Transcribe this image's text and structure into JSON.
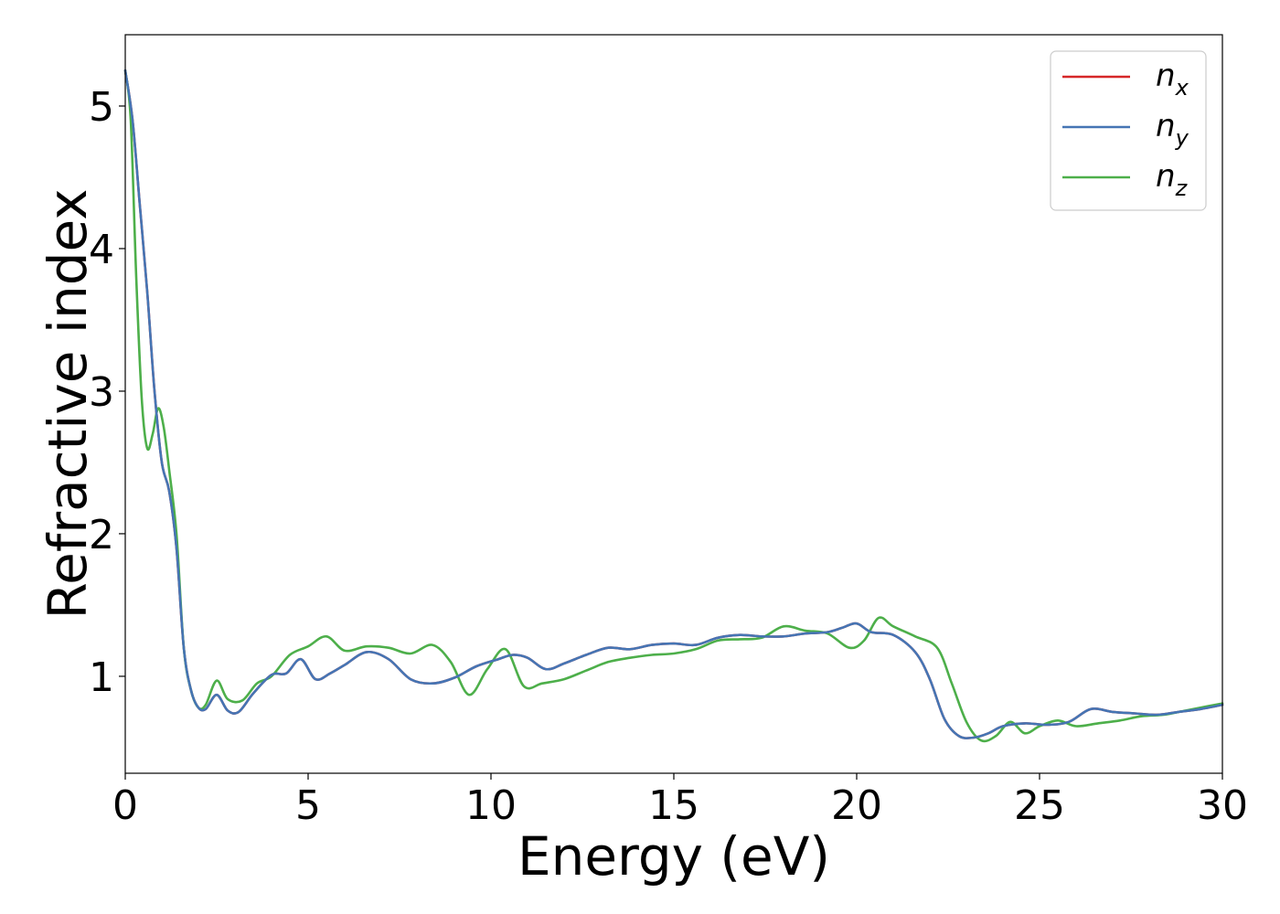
{
  "chart_data": {
    "type": "line",
    "title": "",
    "xlabel": "Energy (eV)",
    "ylabel": "Refractive index",
    "xlim": [
      0,
      30
    ],
    "ylim": [
      0.32,
      5.5
    ],
    "xticks": [
      0,
      5,
      10,
      15,
      20,
      25,
      30
    ],
    "yticks": [
      1,
      2,
      3,
      4,
      5
    ],
    "grid": false,
    "legend_position": "top-right",
    "series": [
      {
        "name": "n_x",
        "label_main": "n",
        "label_sub": "x",
        "color": "#d62728",
        "x": [
          0,
          0.2,
          0.4,
          0.6,
          0.8,
          1.0,
          1.2,
          1.4,
          1.6,
          1.8,
          2.0,
          2.2,
          2.5,
          2.8,
          3.1,
          3.5,
          4.0,
          4.4,
          4.8,
          5.2,
          5.6,
          6.0,
          6.6,
          7.2,
          7.8,
          8.4,
          9.0,
          9.6,
          10.2,
          10.6,
          11.0,
          11.5,
          12.0,
          12.6,
          13.2,
          13.8,
          14.4,
          15.0,
          15.6,
          16.2,
          16.8,
          17.4,
          18.0,
          18.6,
          19.2,
          19.6,
          20.0,
          20.4,
          21.0,
          21.6,
          22.0,
          22.4,
          22.8,
          23.2,
          23.6,
          24.0,
          24.6,
          25.2,
          25.8,
          26.4,
          27.0,
          27.6,
          28.2,
          28.8,
          29.4,
          30.0
        ],
        "y": [
          5.25,
          4.9,
          4.3,
          3.7,
          3.0,
          2.5,
          2.3,
          1.9,
          1.2,
          0.9,
          0.78,
          0.77,
          0.87,
          0.76,
          0.75,
          0.88,
          1.01,
          1.02,
          1.12,
          0.98,
          1.02,
          1.08,
          1.17,
          1.12,
          0.98,
          0.95,
          0.99,
          1.07,
          1.12,
          1.15,
          1.13,
          1.05,
          1.09,
          1.15,
          1.2,
          1.19,
          1.22,
          1.23,
          1.22,
          1.27,
          1.29,
          1.28,
          1.28,
          1.3,
          1.31,
          1.34,
          1.37,
          1.31,
          1.29,
          1.17,
          0.98,
          0.7,
          0.58,
          0.57,
          0.6,
          0.65,
          0.67,
          0.66,
          0.68,
          0.77,
          0.75,
          0.74,
          0.73,
          0.75,
          0.77,
          0.8
        ]
      },
      {
        "name": "n_y",
        "label_main": "n",
        "label_sub": "y",
        "color": "#4575b4",
        "x": [
          0,
          0.2,
          0.4,
          0.6,
          0.8,
          1.0,
          1.2,
          1.4,
          1.6,
          1.8,
          2.0,
          2.2,
          2.5,
          2.8,
          3.1,
          3.5,
          4.0,
          4.4,
          4.8,
          5.2,
          5.6,
          6.0,
          6.6,
          7.2,
          7.8,
          8.4,
          9.0,
          9.6,
          10.2,
          10.6,
          11.0,
          11.5,
          12.0,
          12.6,
          13.2,
          13.8,
          14.4,
          15.0,
          15.6,
          16.2,
          16.8,
          17.4,
          18.0,
          18.6,
          19.2,
          19.6,
          20.0,
          20.4,
          21.0,
          21.6,
          22.0,
          22.4,
          22.8,
          23.2,
          23.6,
          24.0,
          24.6,
          25.2,
          25.8,
          26.4,
          27.0,
          27.6,
          28.2,
          28.8,
          29.4,
          30.0
        ],
        "y": [
          5.25,
          4.9,
          4.3,
          3.7,
          3.0,
          2.5,
          2.3,
          1.9,
          1.2,
          0.9,
          0.78,
          0.77,
          0.87,
          0.76,
          0.75,
          0.88,
          1.01,
          1.02,
          1.12,
          0.98,
          1.02,
          1.08,
          1.17,
          1.12,
          0.98,
          0.95,
          0.99,
          1.07,
          1.12,
          1.15,
          1.13,
          1.05,
          1.09,
          1.15,
          1.2,
          1.19,
          1.22,
          1.23,
          1.22,
          1.27,
          1.29,
          1.28,
          1.28,
          1.3,
          1.31,
          1.34,
          1.37,
          1.31,
          1.29,
          1.17,
          0.98,
          0.7,
          0.58,
          0.57,
          0.6,
          0.65,
          0.67,
          0.66,
          0.68,
          0.77,
          0.75,
          0.74,
          0.73,
          0.75,
          0.77,
          0.8
        ]
      },
      {
        "name": "n_z",
        "label_main": "n",
        "label_sub": "z",
        "color": "#4daf4a",
        "x": [
          0,
          0.15,
          0.3,
          0.45,
          0.6,
          0.75,
          0.9,
          1.05,
          1.2,
          1.4,
          1.6,
          1.8,
          2.0,
          2.2,
          2.5,
          2.8,
          3.2,
          3.6,
          4.0,
          4.5,
          5.0,
          5.5,
          6.0,
          6.6,
          7.2,
          7.8,
          8.4,
          8.9,
          9.4,
          9.9,
          10.4,
          10.9,
          11.4,
          12.0,
          12.6,
          13.2,
          13.8,
          14.4,
          15.0,
          15.6,
          16.2,
          16.8,
          17.4,
          18.0,
          18.6,
          19.2,
          19.8,
          20.2,
          20.6,
          21.0,
          21.6,
          22.2,
          22.6,
          23.0,
          23.4,
          23.8,
          24.2,
          24.6,
          25.0,
          25.5,
          26.0,
          26.6,
          27.2,
          27.8,
          28.4,
          29.0,
          29.6,
          30.0
        ],
        "y": [
          5.25,
          4.9,
          3.8,
          2.95,
          2.6,
          2.7,
          2.88,
          2.75,
          2.45,
          2.0,
          1.2,
          0.9,
          0.78,
          0.8,
          0.97,
          0.84,
          0.83,
          0.95,
          1.0,
          1.15,
          1.21,
          1.28,
          1.18,
          1.21,
          1.2,
          1.16,
          1.22,
          1.1,
          0.87,
          1.05,
          1.19,
          0.93,
          0.95,
          0.98,
          1.04,
          1.1,
          1.13,
          1.15,
          1.16,
          1.19,
          1.25,
          1.26,
          1.27,
          1.35,
          1.32,
          1.3,
          1.2,
          1.25,
          1.41,
          1.35,
          1.28,
          1.2,
          0.95,
          0.68,
          0.55,
          0.58,
          0.68,
          0.6,
          0.65,
          0.69,
          0.65,
          0.67,
          0.69,
          0.72,
          0.73,
          0.76,
          0.79,
          0.81
        ]
      }
    ]
  }
}
